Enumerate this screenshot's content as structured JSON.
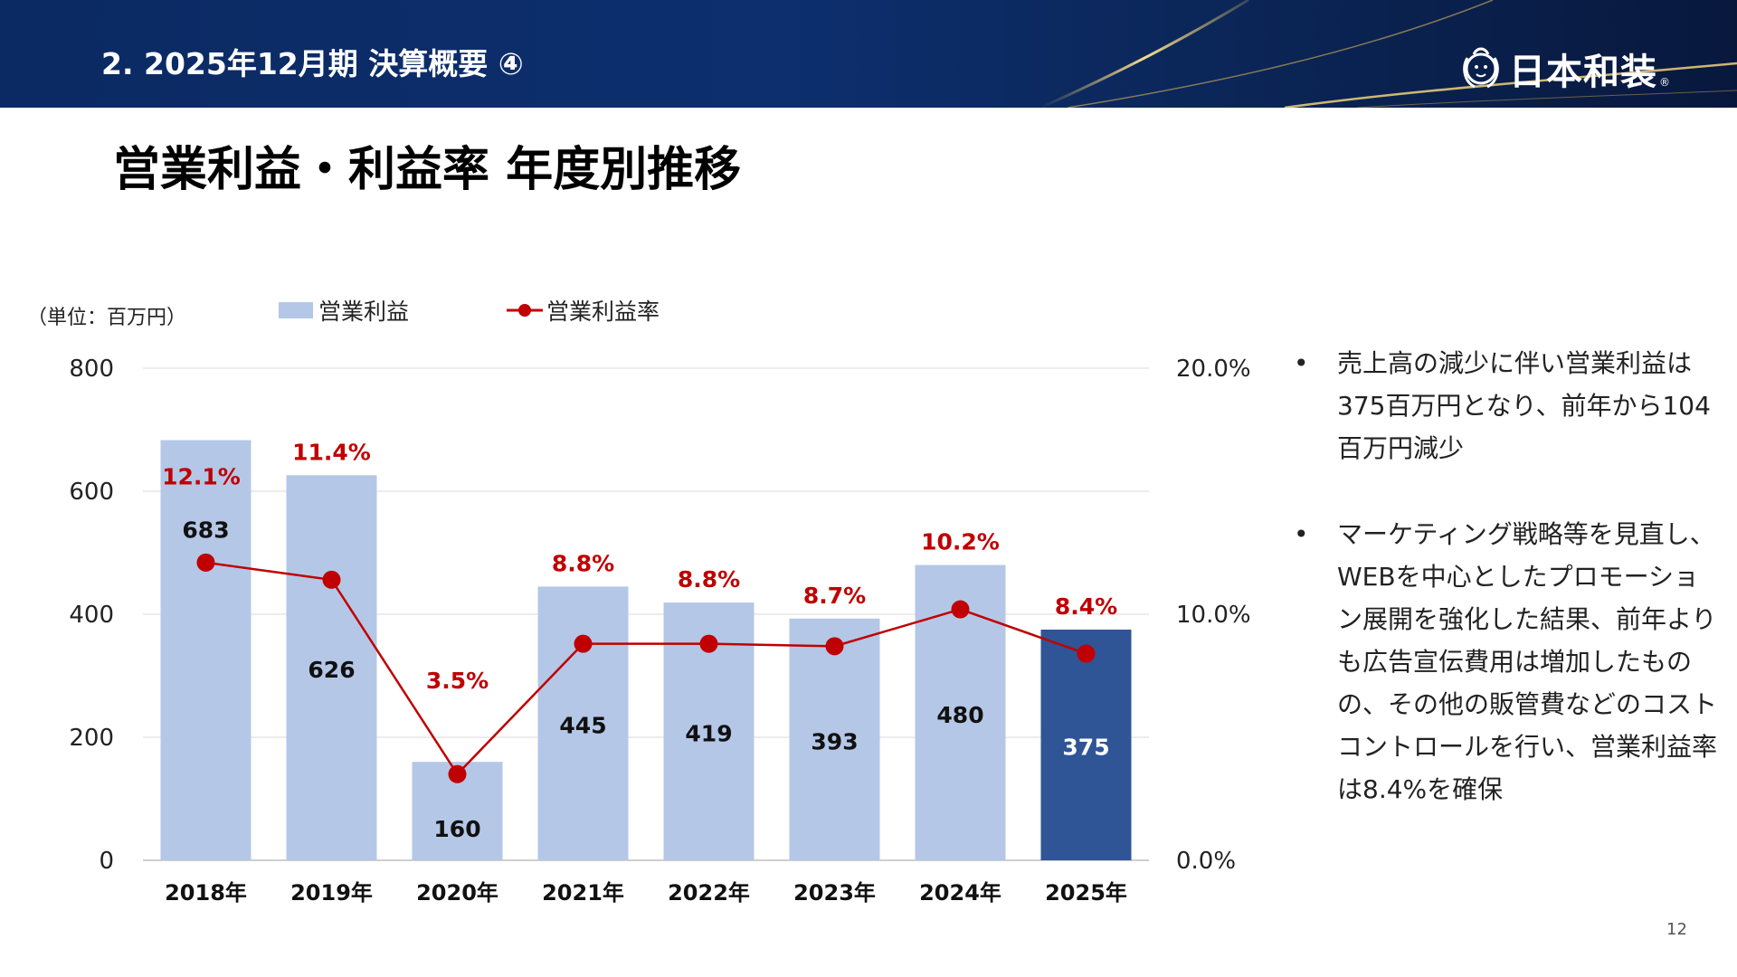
{
  "header": {
    "section_title": "2. 2025年12月期 決算概要 ④",
    "logo_text": "日本和装",
    "logo_reg": "®"
  },
  "page_title": "営業利益・利益率 年度別推移",
  "unit_label": "（単位：百万円）",
  "legend": {
    "bar_label": "営業利益",
    "line_label": "営業利益率"
  },
  "colors": {
    "bar": "#b4c7e7",
    "bar_highlight": "#2f5597",
    "line": "#c00000",
    "header": "#0b2a63",
    "gold": "#e8c66a"
  },
  "chart_data": {
    "type": "bar",
    "categories": [
      "2018年",
      "2019年",
      "2020年",
      "2021年",
      "2022年",
      "2023年",
      "2024年",
      "2025年"
    ],
    "series": [
      {
        "name": "営業利益",
        "type": "bar",
        "axis": "left",
        "values": [
          683,
          626,
          160,
          445,
          419,
          393,
          480,
          375
        ],
        "labels": [
          "683",
          "626",
          "160",
          "445",
          "419",
          "393",
          "480",
          "375"
        ]
      },
      {
        "name": "営業利益率",
        "type": "line",
        "axis": "right",
        "values": [
          12.1,
          11.4,
          3.5,
          8.8,
          8.8,
          8.7,
          10.2,
          8.4
        ],
        "labels": [
          "12.1%",
          "11.4%",
          "3.5%",
          "8.8%",
          "8.8%",
          "8.7%",
          "10.2%",
          "8.4%"
        ]
      }
    ],
    "highlight_index": 7,
    "y_left": {
      "min": 0,
      "max": 800,
      "ticks": [
        0,
        200,
        400,
        600,
        800
      ],
      "tick_labels": [
        "0",
        "200",
        "400",
        "600",
        "800"
      ]
    },
    "y_right": {
      "min": 0,
      "max": 20,
      "ticks": [
        0,
        10,
        20
      ],
      "tick_labels": [
        "0.0%",
        "10.0%",
        "20.0%"
      ]
    },
    "grid": true,
    "legend_position": "top-left"
  },
  "bullets": {
    "marker": "•",
    "items": [
      "売上高の減少に伴い営業利益は375百万円となり、前年から104百万円減少",
      "マーケティング戦略等を見直し、WEBを中心としたプロモーション展開を強化した結果、前年よりも広告宣伝費用は増加したものの、その他の販管費などのコストコントロールを行い、営業利益率は8.4%を確保"
    ]
  },
  "page_number": "12"
}
